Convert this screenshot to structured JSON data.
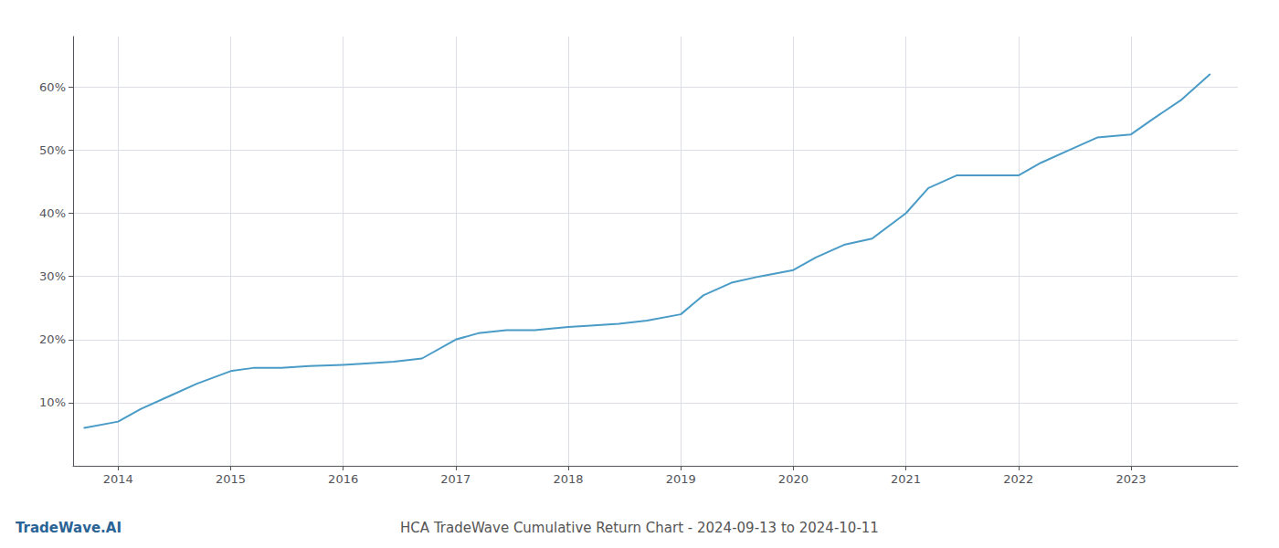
{
  "chart_data": {
    "type": "line",
    "title": "HCA TradeWave Cumulative Return Chart - 2024-09-13 to 2024-10-11",
    "annotations": [
      "TradeWave.AI"
    ],
    "x": [
      2013.7,
      2014.0,
      2014.2,
      2014.45,
      2014.7,
      2015.0,
      2015.2,
      2015.45,
      2015.7,
      2016.0,
      2016.2,
      2016.45,
      2016.7,
      2017.0,
      2017.2,
      2017.45,
      2017.7,
      2018.0,
      2018.2,
      2018.45,
      2018.7,
      2019.0,
      2019.2,
      2019.45,
      2019.7,
      2020.0,
      2020.2,
      2020.45,
      2020.7,
      2021.0,
      2021.2,
      2021.45,
      2021.7,
      2022.0,
      2022.2,
      2022.45,
      2022.7,
      2023.0,
      2023.2,
      2023.45,
      2023.7
    ],
    "values": [
      6,
      7,
      9,
      11,
      13,
      15,
      15.5,
      15.5,
      15.8,
      16,
      16.2,
      16.5,
      17,
      20,
      21,
      21.5,
      21.5,
      22,
      22.2,
      22.5,
      23,
      24,
      27,
      29,
      30,
      31,
      33,
      35,
      36,
      40,
      44,
      46,
      46,
      46,
      48,
      50,
      52,
      52.5,
      55,
      58,
      62
    ],
    "color": "#4a9cc7",
    "xlim": [
      2013.6,
      2023.95
    ],
    "xticks": [
      2014,
      2015,
      2016,
      2017,
      2018,
      2019,
      2020,
      2021,
      2022,
      2023
    ],
    "ylim": [
      0,
      68
    ],
    "yticks": [
      {
        "value": 10,
        "label": "10%"
      },
      {
        "value": 20,
        "label": "20%"
      },
      {
        "value": 30,
        "label": "30%"
      },
      {
        "value": 40,
        "label": "40%"
      },
      {
        "value": 50,
        "label": "50%"
      },
      {
        "value": 60,
        "label": "60%"
      }
    ],
    "grid": true
  }
}
